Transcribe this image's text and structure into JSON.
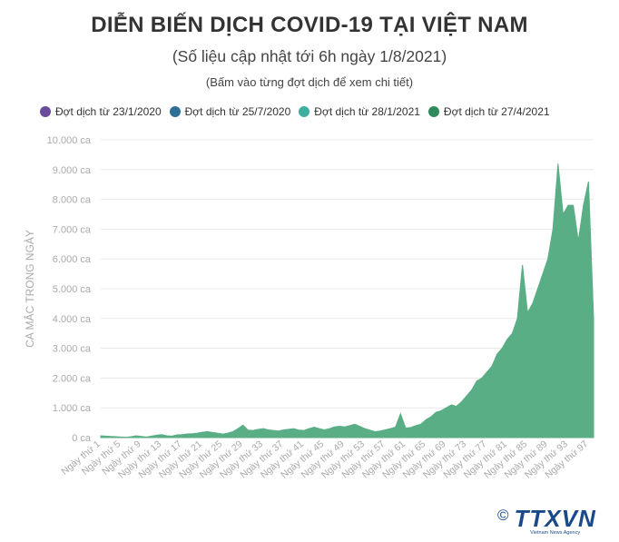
{
  "header": {
    "title": "DIỄN BIẾN DỊCH COVID-19 TẠI VIỆT NAM",
    "subtitle": "(Số liệu cập nhật tới 6h ngày 1/8/2021)",
    "hint": "(Bấm vào từng đợt dịch để xem chi tiết)"
  },
  "legend": [
    {
      "label": "Đợt dịch từ 23/1/2020",
      "color": "#6b4c9a"
    },
    {
      "label": "Đợt dịch từ 25/7/2020",
      "color": "#2e6f96"
    },
    {
      "label": "Đợt dịch từ 28/1/2021",
      "color": "#3fae9e"
    },
    {
      "label": "Đợt dịch từ 27/4/2021",
      "color": "#2e8a5a"
    }
  ],
  "colors": {
    "area": "#5aae86",
    "grid": "#e8e8e8",
    "axis_text": "#aaaaaa"
  },
  "logo": {
    "name": "TTXVN",
    "sub": "Vietnam News Agency",
    "symbol": "©"
  },
  "chart_data": {
    "type": "area",
    "title": "DIỄN BIẾN DỊCH COVID-19 TẠI VIỆT NAM",
    "ylabel": "CA MẮC TRONG NGÀY",
    "ylim": [
      0,
      10000
    ],
    "yticks": [
      "0 ca",
      "1.000 ca",
      "2.000 ca",
      "3.000 ca",
      "4.000 ca",
      "5.000 ca",
      "6.000 ca",
      "7.000 ca",
      "8.000 ca",
      "9.000 ca",
      "10.000 ca"
    ],
    "xtick_labels": [
      "Ngày thứ 1",
      "Ngày thứ 5",
      "Ngày thứ 9",
      "Ngày thứ 13",
      "Ngày thứ 17",
      "Ngày thứ 21",
      "Ngày thứ 25",
      "Ngày thứ 29",
      "Ngày thứ 33",
      "Ngày thứ 37",
      "Ngày thứ 41",
      "Ngày thứ 45",
      "Ngày thứ 49",
      "Ngày thứ 53",
      "Ngày thứ 57",
      "Ngày thứ 61",
      "Ngày thứ 65",
      "Ngày thứ 69",
      "Ngày thứ 73",
      "Ngày thứ 77",
      "Ngày thứ 81",
      "Ngày thứ 85",
      "Ngày thứ 89",
      "Ngày thứ 93",
      "Ngày thứ 97"
    ],
    "grid": true,
    "legend_position": "top",
    "x": [
      1,
      2,
      3,
      4,
      5,
      6,
      7,
      8,
      9,
      10,
      11,
      12,
      13,
      14,
      15,
      16,
      17,
      18,
      19,
      20,
      21,
      22,
      23,
      24,
      25,
      26,
      27,
      28,
      29,
      30,
      31,
      32,
      33,
      34,
      35,
      36,
      37,
      38,
      39,
      40,
      41,
      42,
      43,
      44,
      45,
      46,
      47,
      48,
      49,
      50,
      51,
      52,
      53,
      54,
      55,
      56,
      57,
      58,
      59,
      60,
      61,
      62,
      63,
      64,
      65,
      66,
      67,
      68,
      69,
      70,
      71,
      72,
      73,
      74,
      75,
      76,
      77,
      78,
      79,
      80,
      81,
      82,
      83,
      84,
      85,
      86,
      87,
      88,
      89,
      90,
      91,
      92,
      93,
      94,
      95,
      96,
      97,
      98
    ],
    "series": [
      {
        "values": [
          60,
          50,
          40,
          30,
          20,
          10,
          30,
          60,
          40,
          20,
          50,
          80,
          100,
          60,
          50,
          90,
          100,
          120,
          130,
          150,
          180,
          200,
          170,
          150,
          120,
          150,
          200,
          300,
          420,
          250,
          240,
          280,
          300,
          260,
          240,
          220,
          260,
          280,
          300,
          250,
          240,
          300,
          350,
          300,
          260,
          300,
          360,
          380,
          360,
          400,
          450,
          380,
          300,
          250,
          200,
          220,
          260,
          300,
          350,
          800,
          320,
          340,
          400,
          450,
          600,
          700,
          850,
          900,
          1000,
          1100,
          1050,
          1200,
          1400,
          1600,
          1900,
          2000,
          2200,
          2400,
          2800,
          3000,
          3300,
          3500,
          4000,
          5800,
          4200,
          4500,
          5000,
          5500,
          6000,
          7000,
          9200,
          7500,
          7800,
          7800,
          6600,
          7800,
          8600,
          4000
        ]
      }
    ]
  }
}
